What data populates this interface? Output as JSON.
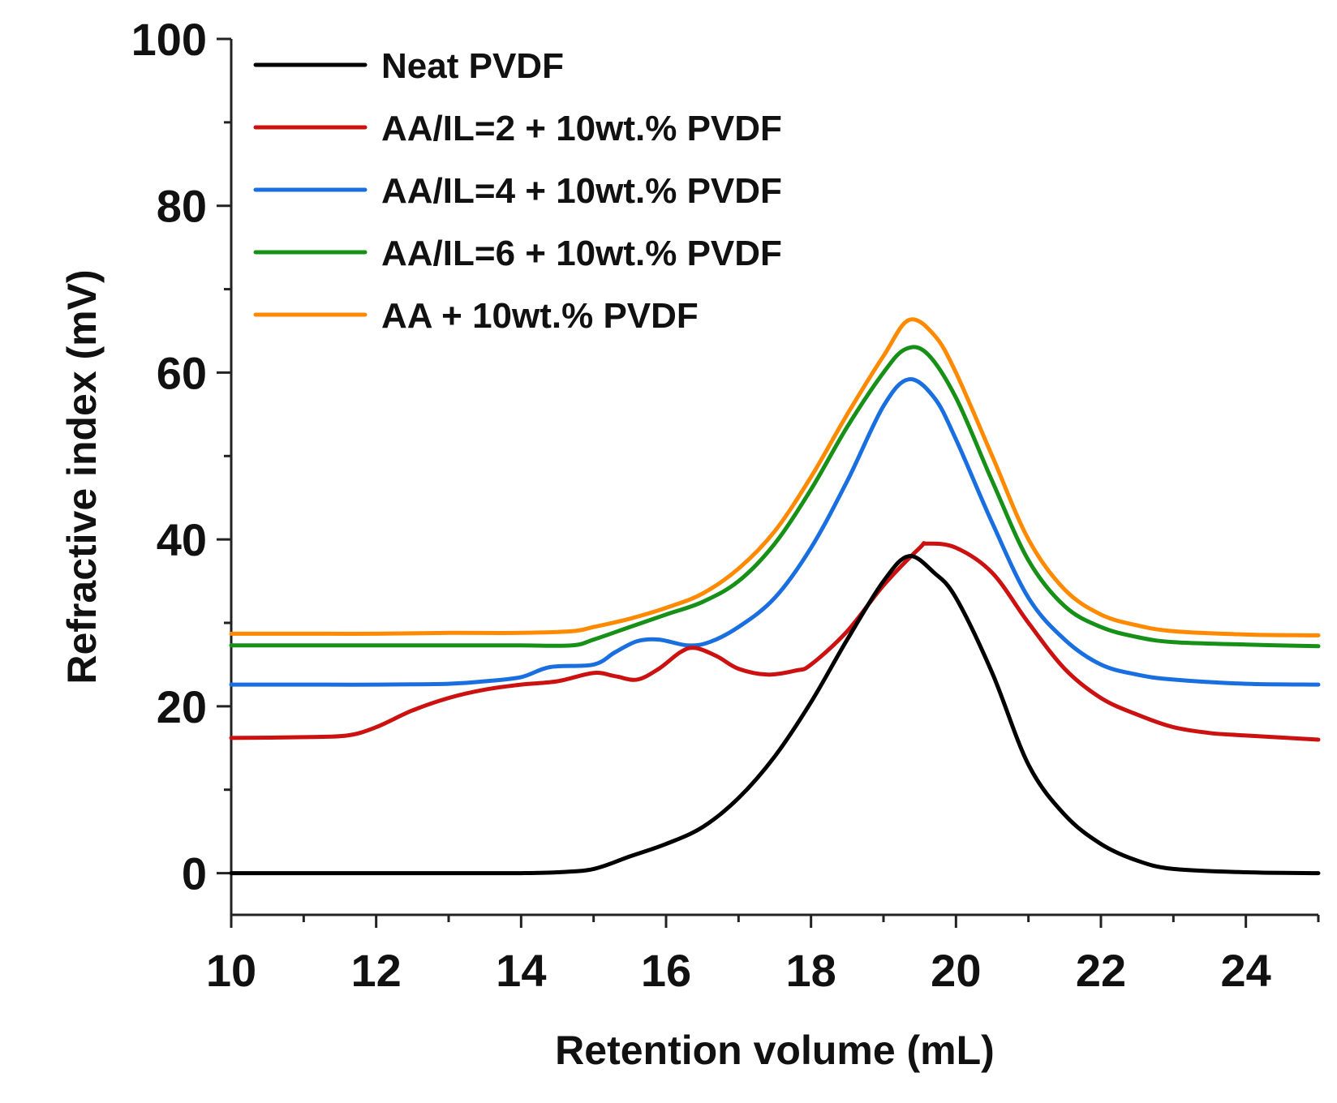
{
  "chart_data": {
    "type": "line",
    "title": "",
    "xlabel": "Retention volume (mL)",
    "ylabel": "Refractive index (mV)",
    "xlim": [
      10,
      25
    ],
    "ylim": [
      -5,
      100
    ],
    "x_ticks": [
      "10",
      "12",
      "14",
      "16",
      "18",
      "20",
      "22",
      "24"
    ],
    "y_ticks": [
      "0",
      "20",
      "40",
      "60",
      "80",
      "100"
    ],
    "grid": false,
    "legend_position": "top-left",
    "series": [
      {
        "name": "Neat PVDF",
        "color": "#000000",
        "points": [
          [
            10,
            0
          ],
          [
            11,
            0
          ],
          [
            12,
            0
          ],
          [
            13,
            0
          ],
          [
            14,
            0
          ],
          [
            14.5,
            0.1
          ],
          [
            15,
            0.5
          ],
          [
            15.5,
            2
          ],
          [
            16,
            3.5
          ],
          [
            16.5,
            5.5
          ],
          [
            17,
            9
          ],
          [
            17.5,
            14
          ],
          [
            18,
            20.5
          ],
          [
            18.5,
            28
          ],
          [
            19,
            35
          ],
          [
            19.35,
            38
          ],
          [
            19.7,
            36
          ],
          [
            20,
            33
          ],
          [
            20.5,
            24
          ],
          [
            21,
            13
          ],
          [
            21.5,
            7
          ],
          [
            22,
            3.5
          ],
          [
            22.5,
            1.5
          ],
          [
            23,
            0.5
          ],
          [
            24,
            0.1
          ],
          [
            25,
            0
          ]
        ]
      },
      {
        "name": "AA/IL=2 + 10wt.% PVDF",
        "color": "#cc1111",
        "points": [
          [
            10,
            16.2
          ],
          [
            11,
            16.3
          ],
          [
            11.6,
            16.5
          ],
          [
            12,
            17.5
          ],
          [
            12.5,
            19.5
          ],
          [
            13,
            21
          ],
          [
            13.5,
            22
          ],
          [
            14,
            22.6
          ],
          [
            14.5,
            23
          ],
          [
            15,
            24
          ],
          [
            15.3,
            23.6
          ],
          [
            15.6,
            23.2
          ],
          [
            15.9,
            24.5
          ],
          [
            16.2,
            26.5
          ],
          [
            16.4,
            27
          ],
          [
            16.7,
            26
          ],
          [
            17,
            24.5
          ],
          [
            17.4,
            23.8
          ],
          [
            17.8,
            24.3
          ],
          [
            18,
            25
          ],
          [
            18.5,
            29
          ],
          [
            19,
            34.5
          ],
          [
            19.5,
            39
          ],
          [
            19.6,
            39.5
          ],
          [
            20,
            39
          ],
          [
            20.5,
            36
          ],
          [
            21,
            30
          ],
          [
            21.5,
            24.5
          ],
          [
            22,
            21
          ],
          [
            22.5,
            19
          ],
          [
            23,
            17.5
          ],
          [
            23.5,
            16.8
          ],
          [
            24,
            16.5
          ],
          [
            25,
            16
          ]
        ]
      },
      {
        "name": "AA/IL=4 + 10wt.% PVDF",
        "color": "#1a6fe0",
        "points": [
          [
            10,
            22.6
          ],
          [
            11,
            22.6
          ],
          [
            12,
            22.6
          ],
          [
            13,
            22.7
          ],
          [
            13.5,
            23
          ],
          [
            14,
            23.5
          ],
          [
            14.4,
            24.7
          ],
          [
            15,
            25
          ],
          [
            15.3,
            26.5
          ],
          [
            15.6,
            27.8
          ],
          [
            15.9,
            28
          ],
          [
            16.3,
            27.3
          ],
          [
            16.6,
            27.7
          ],
          [
            17,
            29.5
          ],
          [
            17.5,
            33
          ],
          [
            18,
            39
          ],
          [
            18.5,
            47
          ],
          [
            19,
            56
          ],
          [
            19.35,
            59.2
          ],
          [
            19.7,
            57
          ],
          [
            20,
            52
          ],
          [
            20.5,
            42
          ],
          [
            21,
            33
          ],
          [
            21.5,
            28
          ],
          [
            22,
            25
          ],
          [
            22.5,
            23.8
          ],
          [
            23,
            23.2
          ],
          [
            24,
            22.7
          ],
          [
            25,
            22.6
          ]
        ]
      },
      {
        "name": "AA/IL=6 + 10wt.% PVDF",
        "color": "#169016",
        "points": [
          [
            10,
            27.3
          ],
          [
            11,
            27.3
          ],
          [
            12,
            27.3
          ],
          [
            13,
            27.3
          ],
          [
            14,
            27.3
          ],
          [
            14.7,
            27.3
          ],
          [
            15,
            28
          ],
          [
            15.5,
            29.5
          ],
          [
            16,
            31
          ],
          [
            16.5,
            32.5
          ],
          [
            17,
            35
          ],
          [
            17.5,
            39.5
          ],
          [
            18,
            46
          ],
          [
            18.5,
            53.5
          ],
          [
            19,
            60
          ],
          [
            19.3,
            62.8
          ],
          [
            19.6,
            62.3
          ],
          [
            20,
            57
          ],
          [
            20.5,
            47
          ],
          [
            21,
            37.5
          ],
          [
            21.5,
            32
          ],
          [
            22,
            29.5
          ],
          [
            22.5,
            28.3
          ],
          [
            23,
            27.7
          ],
          [
            24,
            27.4
          ],
          [
            25,
            27.2
          ]
        ]
      },
      {
        "name": "AA + 10wt.% PVDF",
        "color": "#ff8a00",
        "points": [
          [
            10,
            28.7
          ],
          [
            11,
            28.7
          ],
          [
            12,
            28.7
          ],
          [
            13,
            28.8
          ],
          [
            14,
            28.8
          ],
          [
            14.7,
            29
          ],
          [
            15,
            29.5
          ],
          [
            15.5,
            30.5
          ],
          [
            16,
            31.8
          ],
          [
            16.5,
            33.5
          ],
          [
            17,
            36.5
          ],
          [
            17.5,
            41
          ],
          [
            18,
            47.5
          ],
          [
            18.5,
            55
          ],
          [
            19,
            62
          ],
          [
            19.35,
            66.3
          ],
          [
            19.7,
            64.5
          ],
          [
            20,
            60
          ],
          [
            20.5,
            50
          ],
          [
            21,
            40
          ],
          [
            21.5,
            34
          ],
          [
            22,
            31
          ],
          [
            22.5,
            29.7
          ],
          [
            23,
            29
          ],
          [
            24,
            28.6
          ],
          [
            25,
            28.5
          ]
        ]
      }
    ]
  }
}
